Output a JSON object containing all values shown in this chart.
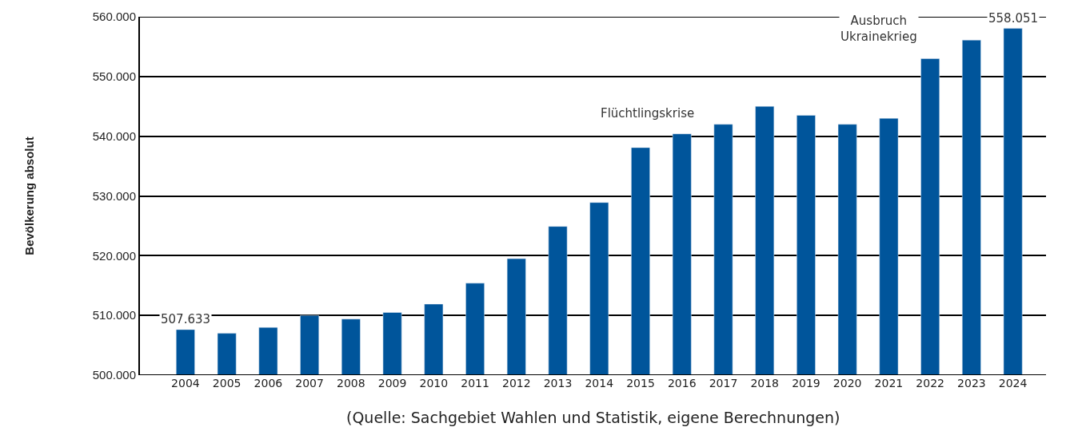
{
  "chart_data": {
    "type": "bar",
    "ylabel": "Bevölkerung absolut",
    "categories": [
      "2004",
      "2005",
      "2006",
      "2007",
      "2008",
      "2009",
      "2010",
      "2011",
      "2012",
      "2013",
      "2014",
      "2015",
      "2016",
      "2017",
      "2018",
      "2019",
      "2020",
      "2021",
      "2022",
      "2023",
      "2024"
    ],
    "values": [
      507633,
      507000,
      508000,
      510000,
      509400,
      510500,
      511900,
      515400,
      519500,
      524900,
      528900,
      538100,
      540400,
      542000,
      545000,
      543500,
      542000,
      543000,
      553000,
      556100,
      558051
    ],
    "value_labels": [
      "507.633",
      null,
      null,
      null,
      null,
      null,
      null,
      null,
      null,
      null,
      null,
      null,
      null,
      null,
      null,
      null,
      null,
      null,
      null,
      null,
      "558.051"
    ],
    "color": "#00559b",
    "ylim": [
      500000,
      560000
    ],
    "yticks": [
      {
        "value": 500000,
        "label": "500.000"
      },
      {
        "value": 510000,
        "label": "510.000"
      },
      {
        "value": 520000,
        "label": "520.000"
      },
      {
        "value": 530000,
        "label": "530.000"
      },
      {
        "value": 540000,
        "label": "540.000"
      },
      {
        "value": 550000,
        "label": "550.000"
      },
      {
        "value": 560000,
        "label": "560.000"
      }
    ],
    "grid": "y",
    "annotations": [
      "Flüchtlingskrise",
      "Ausbruch\nUkrainekrieg",
      "(Quelle: Sachgebiet Wahlen und Statistik, eigene Berechnungen)"
    ]
  }
}
